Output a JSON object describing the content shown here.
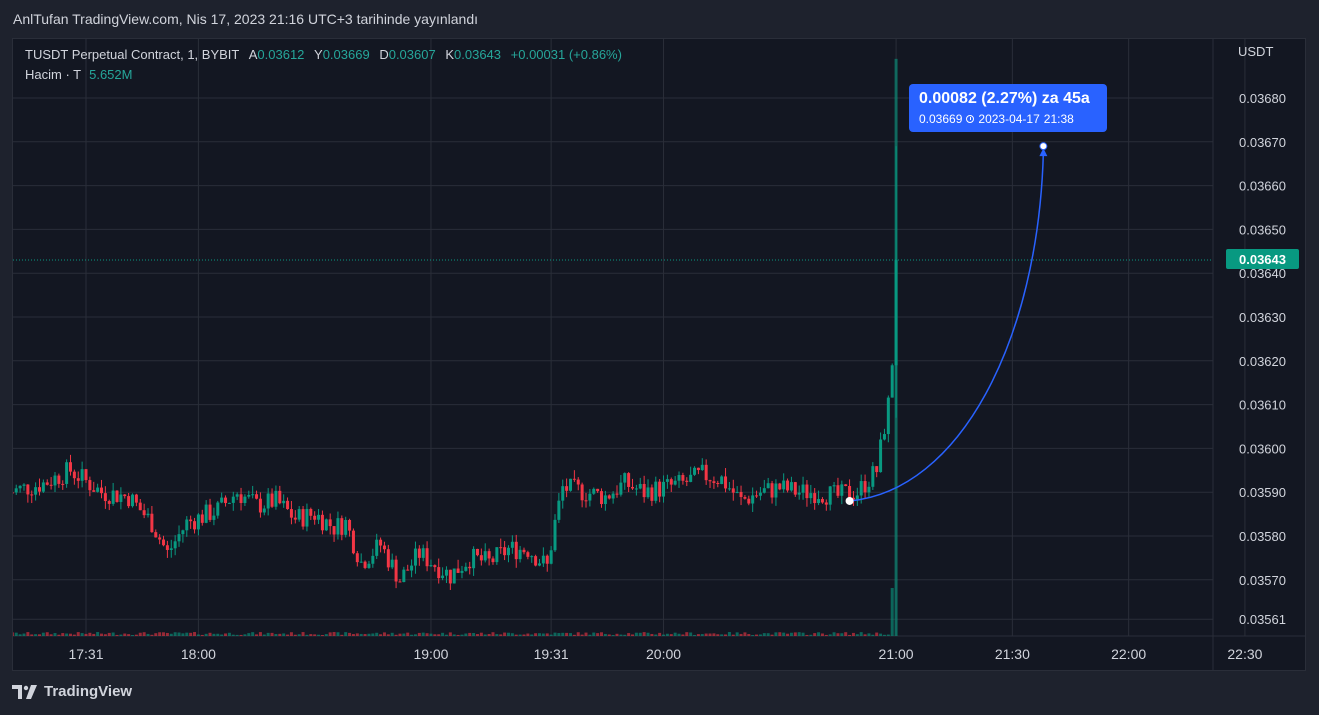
{
  "header": {
    "published_text": "AnlTufan TradingView.com, Nis 17, 2023 21:16 UTC+3 tarihinde yayınlandı"
  },
  "legend": {
    "symbol": "TUSDT Perpetual Contract, 1, BYBIT",
    "open_label": "A",
    "open": "0.03612",
    "high_label": "Y",
    "high": "0.03669",
    "low_label": "D",
    "low": "0.03607",
    "close_label": "K",
    "close": "0.03643",
    "change": "+0.00031 (+0.86%)",
    "volume_label": "Hacim · T",
    "volume": "5.652M"
  },
  "y_axis": {
    "unit": "USDT",
    "current_price_label": "0.03643"
  },
  "tooltip": {
    "main": "0.00082 (2.27%) za 45a",
    "price": "0.03669",
    "date": "2023-04-17",
    "time": "21:38"
  },
  "footer": {
    "brand": "TradingView"
  },
  "colors": {
    "up": "#089981",
    "down": "#f23645",
    "projection": "#2962ff",
    "background": "#131722",
    "grid": "#2a2e39",
    "text": "#d1d4dc"
  },
  "chart_data": {
    "type": "candlestick",
    "symbol": "TUSDT Perpetual Contract",
    "interval": "1",
    "exchange": "BYBIT",
    "y_tick_labels": [
      "0.03680",
      "0.03670",
      "0.03660",
      "0.03650",
      "0.03640",
      "0.03630",
      "0.03620",
      "0.03610",
      "0.03600",
      "0.03590",
      "0.03580",
      "0.03570",
      "0.03561"
    ],
    "x_tick_labels": [
      "17:31",
      "18:00",
      "19:00",
      "19:31",
      "20:00",
      "21:00",
      "21:30",
      "22:00",
      "22:30"
    ],
    "x_tick_minutes": [
      1051,
      1080,
      1140,
      1171,
      1200,
      1260,
      1290,
      1320,
      1350
    ],
    "current_price": 0.03643,
    "price_path": [
      {
        "t": "17:11",
        "p": 0.0359
      },
      {
        "t": "17:20",
        "p": 0.03592
      },
      {
        "t": "17:27",
        "p": 0.03595
      },
      {
        "t": "17:35",
        "p": 0.0359
      },
      {
        "t": "17:42",
        "p": 0.03589
      },
      {
        "t": "17:48",
        "p": 0.03583
      },
      {
        "t": "17:52",
        "p": 0.03576
      },
      {
        "t": "17:57",
        "p": 0.03583
      },
      {
        "t": "18:05",
        "p": 0.03586
      },
      {
        "t": "18:10",
        "p": 0.0359
      },
      {
        "t": "18:15",
        "p": 0.03587
      },
      {
        "t": "18:20",
        "p": 0.03588
      },
      {
        "t": "18:25",
        "p": 0.03584
      },
      {
        "t": "18:30",
        "p": 0.03585
      },
      {
        "t": "18:35",
        "p": 0.03582
      },
      {
        "t": "18:38",
        "p": 0.03583
      },
      {
        "t": "18:42",
        "p": 0.03574
      },
      {
        "t": "18:47",
        "p": 0.03578
      },
      {
        "t": "18:52",
        "p": 0.0357
      },
      {
        "t": "18:57",
        "p": 0.03576
      },
      {
        "t": "19:05",
        "p": 0.03571
      },
      {
        "t": "19:10",
        "p": 0.03575
      },
      {
        "t": "19:15",
        "p": 0.03574
      },
      {
        "t": "19:20",
        "p": 0.03577
      },
      {
        "t": "19:25",
        "p": 0.03577
      },
      {
        "t": "19:30",
        "p": 0.03573
      },
      {
        "t": "19:32",
        "p": 0.03583
      },
      {
        "t": "19:34",
        "p": 0.03591
      },
      {
        "t": "19:40",
        "p": 0.0359
      },
      {
        "t": "19:45",
        "p": 0.03589
      },
      {
        "t": "19:50",
        "p": 0.03592
      },
      {
        "t": "19:55",
        "p": 0.0359
      },
      {
        "t": "20:00",
        "p": 0.03591
      },
      {
        "t": "20:05",
        "p": 0.03592
      },
      {
        "t": "20:10",
        "p": 0.03594
      },
      {
        "t": "20:15",
        "p": 0.03593
      },
      {
        "t": "20:20",
        "p": 0.03588
      },
      {
        "t": "20:25",
        "p": 0.0359
      },
      {
        "t": "20:30",
        "p": 0.03591
      },
      {
        "t": "20:35",
        "p": 0.0359
      },
      {
        "t": "20:40",
        "p": 0.0359
      },
      {
        "t": "20:45",
        "p": 0.03589
      },
      {
        "t": "20:48",
        "p": 0.0359
      },
      {
        "t": "20:50",
        "p": 0.0359
      },
      {
        "t": "20:55",
        "p": 0.03595
      },
      {
        "t": "20:58",
        "p": 0.0361
      },
      {
        "t": "20:59",
        "p": 0.0362
      },
      {
        "t": "21:00",
        "p": 0.03643
      }
    ],
    "volume_spike": {
      "t": "21:00",
      "relative_height": 0.97
    },
    "projection": {
      "start_t": "20:48",
      "start_p": 0.03588,
      "end_t": "21:38",
      "end_p": 0.03669,
      "change": "0.00082 (2.27%)"
    }
  }
}
